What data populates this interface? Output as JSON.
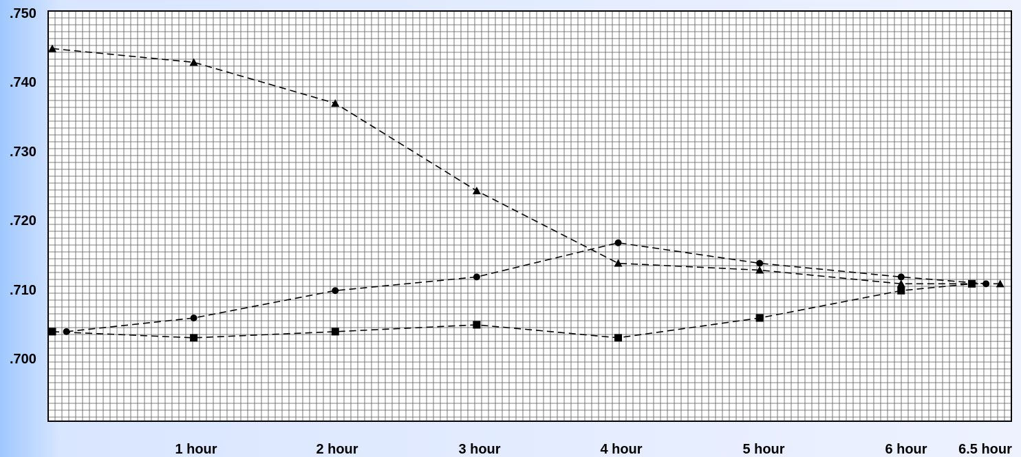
{
  "chart_data": {
    "type": "line",
    "x_labels": [
      "1 hour",
      "2 hour",
      "3 hour",
      "4 hour",
      "5 hour",
      "6 hour",
      "6.5 hour"
    ],
    "y_ticks": [
      ".750",
      ".740",
      ".730",
      ".720",
      ".710",
      ".700"
    ],
    "ylim": [
      0.69,
      0.75
    ],
    "xlim": [
      0,
      6.75
    ],
    "grid": true,
    "line_style": "dashed",
    "series": [
      {
        "marker": "triangle",
        "points": [
          {
            "x": 0.0,
            "y": 0.7445
          },
          {
            "x": 1.0,
            "y": 0.7425
          },
          {
            "x": 2.0,
            "y": 0.7365
          },
          {
            "x": 3.0,
            "y": 0.7237
          },
          {
            "x": 4.0,
            "y": 0.7131
          },
          {
            "x": 5.0,
            "y": 0.7121
          },
          {
            "x": 6.0,
            "y": 0.7101
          },
          {
            "x": 6.7,
            "y": 0.7101
          }
        ]
      },
      {
        "marker": "circle",
        "points": [
          {
            "x": 0.1,
            "y": 0.7031
          },
          {
            "x": 1.0,
            "y": 0.7051
          },
          {
            "x": 2.0,
            "y": 0.7091
          },
          {
            "x": 3.0,
            "y": 0.7111
          },
          {
            "x": 4.0,
            "y": 0.7161
          },
          {
            "x": 5.0,
            "y": 0.7131
          },
          {
            "x": 6.0,
            "y": 0.7111
          },
          {
            "x": 6.6,
            "y": 0.7101
          }
        ]
      },
      {
        "marker": "square",
        "points": [
          {
            "x": 0.0,
            "y": 0.7031
          },
          {
            "x": 1.0,
            "y": 0.7022
          },
          {
            "x": 2.0,
            "y": 0.7031
          },
          {
            "x": 3.0,
            "y": 0.7041
          },
          {
            "x": 4.0,
            "y": 0.7022
          },
          {
            "x": 5.0,
            "y": 0.7051
          },
          {
            "x": 6.0,
            "y": 0.7091
          },
          {
            "x": 6.5,
            "y": 0.7101
          }
        ]
      }
    ]
  }
}
